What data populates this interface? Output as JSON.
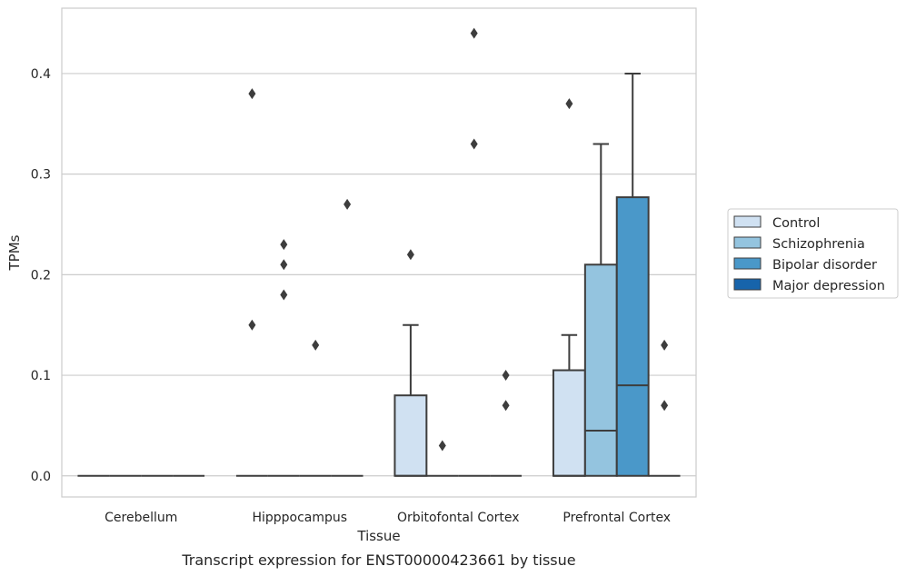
{
  "caption": "Transcript expression for ENST00000423661 by tissue",
  "chart_data": {
    "type": "box",
    "xlabel": "Tissue",
    "ylabel": "TPMs",
    "ylim": [
      -0.021,
      0.465
    ],
    "yticks": [
      0.0,
      0.1,
      0.2,
      0.3,
      0.4
    ],
    "ytick_labels": [
      "0.0",
      "0.1",
      "0.2",
      "0.3",
      "0.4"
    ],
    "grid": true,
    "legend_position": "right",
    "categories": [
      "Cerebellum",
      "Hipppocampus",
      "Orbitofontal Cortex",
      "Prefrontal Cortex"
    ],
    "series": [
      {
        "name": "Control",
        "color": "#d0e1f2",
        "boxes": [
          {
            "whislo": 0,
            "q1": 0,
            "med": 0,
            "q3": 0,
            "whishi": 0,
            "fliers": []
          },
          {
            "whislo": 0,
            "q1": 0,
            "med": 0,
            "q3": 0,
            "whishi": 0,
            "fliers": [
              0.15,
              0.38
            ]
          },
          {
            "whislo": 0,
            "q1": 0,
            "med": 0,
            "q3": 0.08,
            "whishi": 0.15,
            "fliers": [
              0.22
            ]
          },
          {
            "whislo": 0,
            "q1": 0,
            "med": 0,
            "q3": 0.105,
            "whishi": 0.14,
            "fliers": [
              0.37
            ]
          }
        ]
      },
      {
        "name": "Schizophrenia",
        "color": "#94c4df",
        "boxes": [
          {
            "whislo": 0,
            "q1": 0,
            "med": 0,
            "q3": 0,
            "whishi": 0,
            "fliers": []
          },
          {
            "whislo": 0,
            "q1": 0,
            "med": 0,
            "q3": 0,
            "whishi": 0,
            "fliers": [
              0.18,
              0.21,
              0.23
            ]
          },
          {
            "whislo": 0,
            "q1": 0,
            "med": 0,
            "q3": 0,
            "whishi": 0,
            "fliers": [
              0.03
            ]
          },
          {
            "whislo": 0,
            "q1": 0,
            "med": 0.045,
            "q3": 0.21,
            "whishi": 0.33,
            "fliers": []
          }
        ]
      },
      {
        "name": "Bipolar disorder",
        "color": "#4a98c9",
        "boxes": [
          {
            "whislo": 0,
            "q1": 0,
            "med": 0,
            "q3": 0,
            "whishi": 0,
            "fliers": []
          },
          {
            "whislo": 0,
            "q1": 0,
            "med": 0,
            "q3": 0,
            "whishi": 0,
            "fliers": [
              0.13
            ]
          },
          {
            "whislo": 0,
            "q1": 0,
            "med": 0,
            "q3": 0,
            "whishi": 0,
            "fliers": [
              0.33,
              0.44
            ]
          },
          {
            "whislo": 0,
            "q1": 0,
            "med": 0.09,
            "q3": 0.277,
            "whishi": 0.4,
            "fliers": []
          }
        ]
      },
      {
        "name": "Major depression",
        "color": "#1764ab",
        "boxes": [
          {
            "whislo": 0,
            "q1": 0,
            "med": 0,
            "q3": 0,
            "whishi": 0,
            "fliers": []
          },
          {
            "whislo": 0,
            "q1": 0,
            "med": 0,
            "q3": 0,
            "whishi": 0,
            "fliers": [
              0.27
            ]
          },
          {
            "whislo": 0,
            "q1": 0,
            "med": 0,
            "q3": 0,
            "whishi": 0,
            "fliers": [
              0.07,
              0.1
            ]
          },
          {
            "whislo": 0,
            "q1": 0,
            "med": 0,
            "q3": 0,
            "whishi": 0,
            "fliers": [
              0.07,
              0.13
            ]
          }
        ]
      }
    ]
  }
}
